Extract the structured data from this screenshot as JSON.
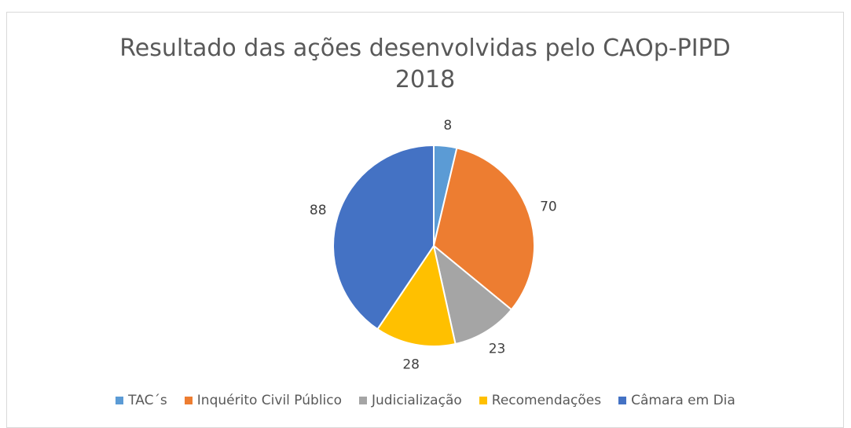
{
  "chart_data": {
    "type": "pie",
    "title": "Resultado das ações desenvolvidas pelo CAOp-PIPD 2018",
    "categories": [
      "TAC´s",
      "Inquérito Civil Público",
      "Judicialização",
      "Recomendações",
      "Câmara em Dia"
    ],
    "values": [
      8,
      70,
      23,
      28,
      88
    ],
    "colors": [
      "#5b9bd5",
      "#ed7d31",
      "#a5a5a5",
      "#ffc000",
      "#4472c4"
    ],
    "legend": "bottom"
  }
}
